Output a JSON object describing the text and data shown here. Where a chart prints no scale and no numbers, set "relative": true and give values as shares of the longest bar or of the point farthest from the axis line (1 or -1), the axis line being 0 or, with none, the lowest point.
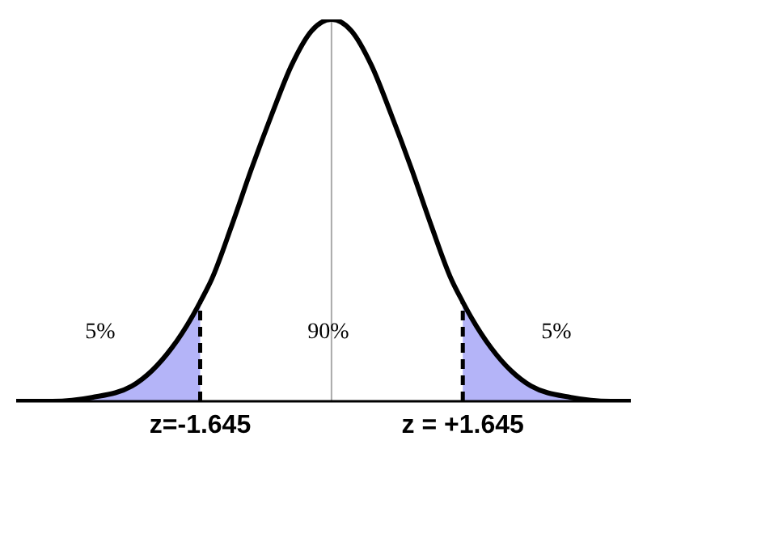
{
  "chart_data": {
    "type": "line",
    "relative": true,
    "marker": "none",
    "tick_labels": "x",
    "xlim": [
      -3.95,
      3.75
    ],
    "xticks": [
      {
        "value": -1.645,
        "label": "z=-1.645"
      },
      {
        "value": 1.645,
        "label": "z = +1.645"
      }
    ],
    "series": [
      {
        "type": "area",
        "color": "#b4b4f8",
        "x": [
          -3.95,
          -3.5,
          -3,
          -2.5,
          -2.25,
          -2,
          -1.75,
          -1.645
        ],
        "values": [
          0,
          0,
          0.01,
          0.04,
          0.08,
          0.14,
          0.22,
          0.26
        ]
      },
      {
        "type": "area",
        "color": "#b4b4f8",
        "x": [
          1.645,
          1.75,
          2,
          2.25,
          2.5,
          3,
          3.5,
          3.75
        ],
        "values": [
          0.26,
          0.22,
          0.14,
          0.08,
          0.04,
          0.01,
          0,
          0
        ]
      },
      {
        "color": "#000000",
        "x": [
          -3.95,
          -3.5,
          -3,
          -2.5,
          -2.25,
          -2,
          -1.75,
          -1.645,
          -1.5,
          -1.25,
          -1,
          -0.75,
          -0.5,
          -0.25,
          0,
          0.25,
          0.5,
          0.75,
          1,
          1.25,
          1.5,
          1.645,
          1.75,
          2,
          2.25,
          2.5,
          3,
          3.5,
          3.75
        ],
        "values": [
          0,
          0,
          0.01,
          0.04,
          0.08,
          0.14,
          0.22,
          0.26,
          0.32,
          0.46,
          0.61,
          0.75,
          0.88,
          0.97,
          1,
          0.97,
          0.88,
          0.75,
          0.61,
          0.46,
          0.32,
          0.26,
          0.22,
          0.14,
          0.08,
          0.04,
          0.01,
          0,
          0
        ]
      },
      {
        "type": "line",
        "color": "#000000",
        "line_style": "dashed",
        "x": [
          -1.645,
          -1.645
        ],
        "values": [
          0,
          0.26
        ]
      },
      {
        "type": "line",
        "color": "#000000",
        "line_style": "dashed",
        "x": [
          1.645,
          1.645
        ],
        "values": [
          0,
          0.26
        ]
      }
    ],
    "ref_lines": [
      {
        "axis": "x",
        "value": 0,
        "color": "#aaaaaa"
      }
    ],
    "annotations": [
      "5%",
      "90%",
      "5%"
    ]
  }
}
